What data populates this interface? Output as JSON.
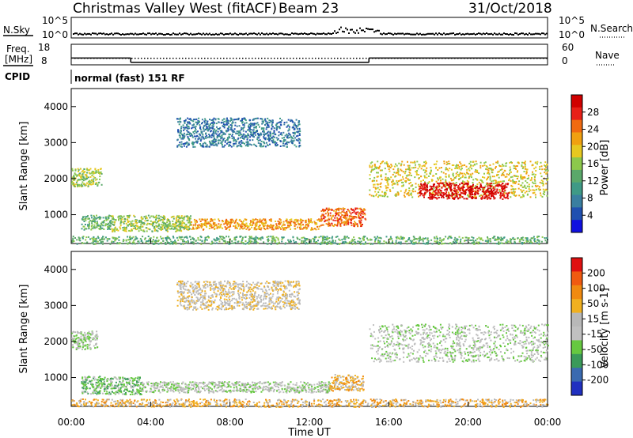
{
  "header": {
    "title": "Christmas Valley West (fitACF)",
    "beam": "Beam 23",
    "date": "31/Oct/2018"
  },
  "sky_panel": {
    "left_label": "N.Sky",
    "right_label": "N.Search",
    "left_ticks": [
      "10^5",
      "10^0"
    ],
    "right_ticks": [
      "10^5",
      "10^0"
    ]
  },
  "freq_panel": {
    "left_label_1": "Freq.",
    "left_label_2": "[MHz]",
    "right_label": "Nave",
    "left_ticks": [
      "18",
      "8"
    ],
    "right_ticks": [
      "60",
      "0"
    ],
    "freq_series": [
      {
        "t_start": 0,
        "t_end": 3,
        "value": 11
      },
      {
        "t_start": 3,
        "t_end": 15,
        "value": 8.5
      },
      {
        "t_start": 15,
        "t_end": 24,
        "value": 11
      }
    ]
  },
  "cpid": {
    "label": "CPID",
    "mode": "normal (fast) 151 RF"
  },
  "colors": {
    "power_scale": [
      "#1010e0",
      "#2050b0",
      "#3a7fa0",
      "#3f9a86",
      "#5aa86a",
      "#8cc84c",
      "#e6c820",
      "#f0a010",
      "#f06a10",
      "#e82018",
      "#d00000"
    ],
    "velocity_scale": [
      "#2030c0",
      "#3a6ab0",
      "#3a9a5a",
      "#66c840",
      "#c0c0c0",
      "#b8b8b8",
      "#f0b020",
      "#f08a10",
      "#f05a10",
      "#e01010"
    ]
  },
  "chart_data": [
    {
      "type": "heatmap",
      "name": "power_panel",
      "xlabel": "",
      "ylabel": "Slant Range [km]",
      "xlim": [
        0,
        24
      ],
      "ylim": [
        200,
        4500
      ],
      "y_ticks": [
        "1000",
        "2000",
        "3000",
        "4000"
      ],
      "colorbar": {
        "label": "Power [dB]",
        "ticks": [
          "28",
          "24",
          "20",
          "16",
          "12",
          "8",
          "4"
        ]
      },
      "regions": [
        {
          "t0": 0.5,
          "t1": 2.0,
          "r0": 600,
          "r1": 1000,
          "level": 4
        },
        {
          "t0": 2.0,
          "t1": 6.0,
          "r0": 550,
          "r1": 1000,
          "level": 5
        },
        {
          "t0": 6.0,
          "t1": 12.5,
          "r0": 600,
          "r1": 900,
          "level": 7
        },
        {
          "t0": 12.5,
          "t1": 14.8,
          "r0": 700,
          "r1": 1200,
          "level": 8
        },
        {
          "t0": 0.0,
          "t1": 1.5,
          "r0": 1800,
          "r1": 2300,
          "level": 5
        },
        {
          "t0": 5.3,
          "t1": 11.5,
          "r0": 2900,
          "r1": 3700,
          "level": 2
        },
        {
          "t0": 15.0,
          "t1": 24.0,
          "r0": 1500,
          "r1": 2500,
          "level": 6
        },
        {
          "t0": 17.5,
          "t1": 22.0,
          "r0": 1450,
          "r1": 1900,
          "level": 10
        },
        {
          "t0": 0.0,
          "t1": 24.0,
          "r0": 200,
          "r1": 420,
          "level": 4
        }
      ]
    },
    {
      "type": "heatmap",
      "name": "velocity_panel",
      "xlabel": "Time UT",
      "ylabel": "Slant Range [km]",
      "xlim": [
        0,
        24
      ],
      "ylim": [
        200,
        4500
      ],
      "x_ticks": [
        "00:00",
        "04:00",
        "08:00",
        "12:00",
        "16:00",
        "20:00",
        "00:00"
      ],
      "y_ticks": [
        "1000",
        "2000",
        "3000",
        "4000"
      ],
      "colorbar": {
        "label": "Velocity [m s-1]",
        "ticks": [
          "200",
          "100",
          "50",
          "15",
          "-15",
          "-50",
          "-100",
          "-200"
        ]
      },
      "regions": [
        {
          "t0": 0.5,
          "t1": 3.5,
          "r0": 550,
          "r1": 1050,
          "level": 3
        },
        {
          "t0": 3.5,
          "t1": 13.0,
          "r0": 600,
          "r1": 900,
          "level": 4
        },
        {
          "t0": 13.0,
          "t1": 14.7,
          "r0": 650,
          "r1": 1100,
          "level": 6
        },
        {
          "t0": 0.0,
          "t1": 1.3,
          "r0": 1800,
          "r1": 2300,
          "level": 4
        },
        {
          "t0": 5.3,
          "t1": 11.5,
          "r0": 2900,
          "r1": 3700,
          "level": 5
        },
        {
          "t0": 15.0,
          "t1": 24.0,
          "r0": 1450,
          "r1": 2500,
          "level": 4
        },
        {
          "t0": 0.0,
          "t1": 24.0,
          "r0": 200,
          "r1": 420,
          "level": 6
        }
      ]
    }
  ]
}
